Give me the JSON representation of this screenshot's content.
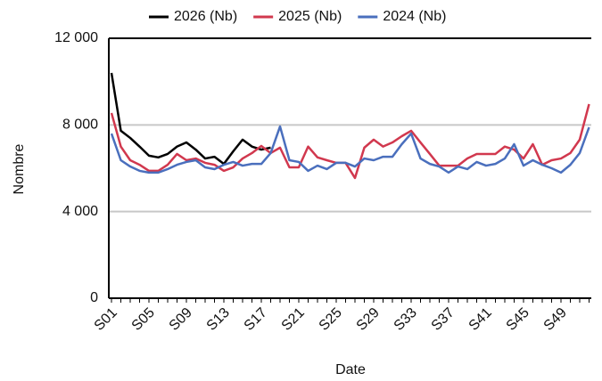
{
  "chart_data": {
    "type": "line",
    "xlabel": "Date",
    "ylabel": "Nombre",
    "categories": [
      "S01",
      null,
      null,
      null,
      "S05",
      null,
      null,
      null,
      "S09",
      null,
      null,
      null,
      "S13",
      null,
      null,
      null,
      "S17",
      null,
      null,
      null,
      "S21",
      null,
      null,
      null,
      "S25",
      null,
      null,
      null,
      "S29",
      null,
      null,
      null,
      "S33",
      null,
      null,
      null,
      "S37",
      null,
      null,
      null,
      "S41",
      null,
      null,
      null,
      "S45",
      null,
      null,
      null,
      "S49",
      null,
      null,
      null
    ],
    "series": [
      {
        "name": "2026 (Nb)",
        "color": "#000000",
        "values": [
          10400,
          7730,
          7400,
          7000,
          6580,
          6500,
          6660,
          7000,
          7190,
          6860,
          6450,
          6530,
          6200,
          6780,
          7320,
          7000,
          6860,
          6950,
          null,
          null,
          null,
          null,
          null,
          null,
          null,
          null,
          null,
          null,
          null,
          null,
          null,
          null,
          null,
          null,
          null,
          null,
          null,
          null,
          null,
          null,
          null,
          null,
          null,
          null,
          null,
          null,
          null,
          null,
          null,
          null,
          null,
          null
        ]
      },
      {
        "name": "2025 (Nb)",
        "color": "#d1384e",
        "values": [
          8550,
          7000,
          6370,
          6160,
          5880,
          5880,
          6160,
          6660,
          6370,
          6450,
          6250,
          6160,
          5880,
          6040,
          6450,
          6700,
          7030,
          6700,
          6950,
          6040,
          6040,
          7000,
          6500,
          6370,
          6250,
          6250,
          5550,
          6950,
          7320,
          7000,
          7190,
          7480,
          7730,
          7190,
          6660,
          6120,
          6120,
          6120,
          6450,
          6660,
          6660,
          6660,
          7000,
          6860,
          6450,
          7110,
          6160,
          6370,
          6450,
          6700,
          7320,
          8960
        ]
      },
      {
        "name": "2024 (Nb)",
        "color": "#4a6fbd",
        "values": [
          7600,
          6370,
          6080,
          5880,
          5800,
          5800,
          5960,
          6160,
          6290,
          6370,
          6040,
          5960,
          6160,
          6290,
          6120,
          6200,
          6200,
          6700,
          7930,
          6370,
          6290,
          5880,
          6120,
          5960,
          6250,
          6250,
          6080,
          6450,
          6370,
          6530,
          6530,
          7110,
          7600,
          6450,
          6200,
          6080,
          5800,
          6080,
          5960,
          6290,
          6120,
          6200,
          6450,
          7110,
          6120,
          6370,
          6160,
          6000,
          5800,
          6160,
          6700,
          7890
        ]
      }
    ],
    "ylim": [
      0,
      12000
    ],
    "yticks": [
      0,
      {
        "value": 4000,
        "label": "4 000"
      },
      {
        "value": 8000,
        "label": "8 000"
      },
      {
        "value": 12000,
        "label": "12 000"
      }
    ],
    "grid": true
  }
}
